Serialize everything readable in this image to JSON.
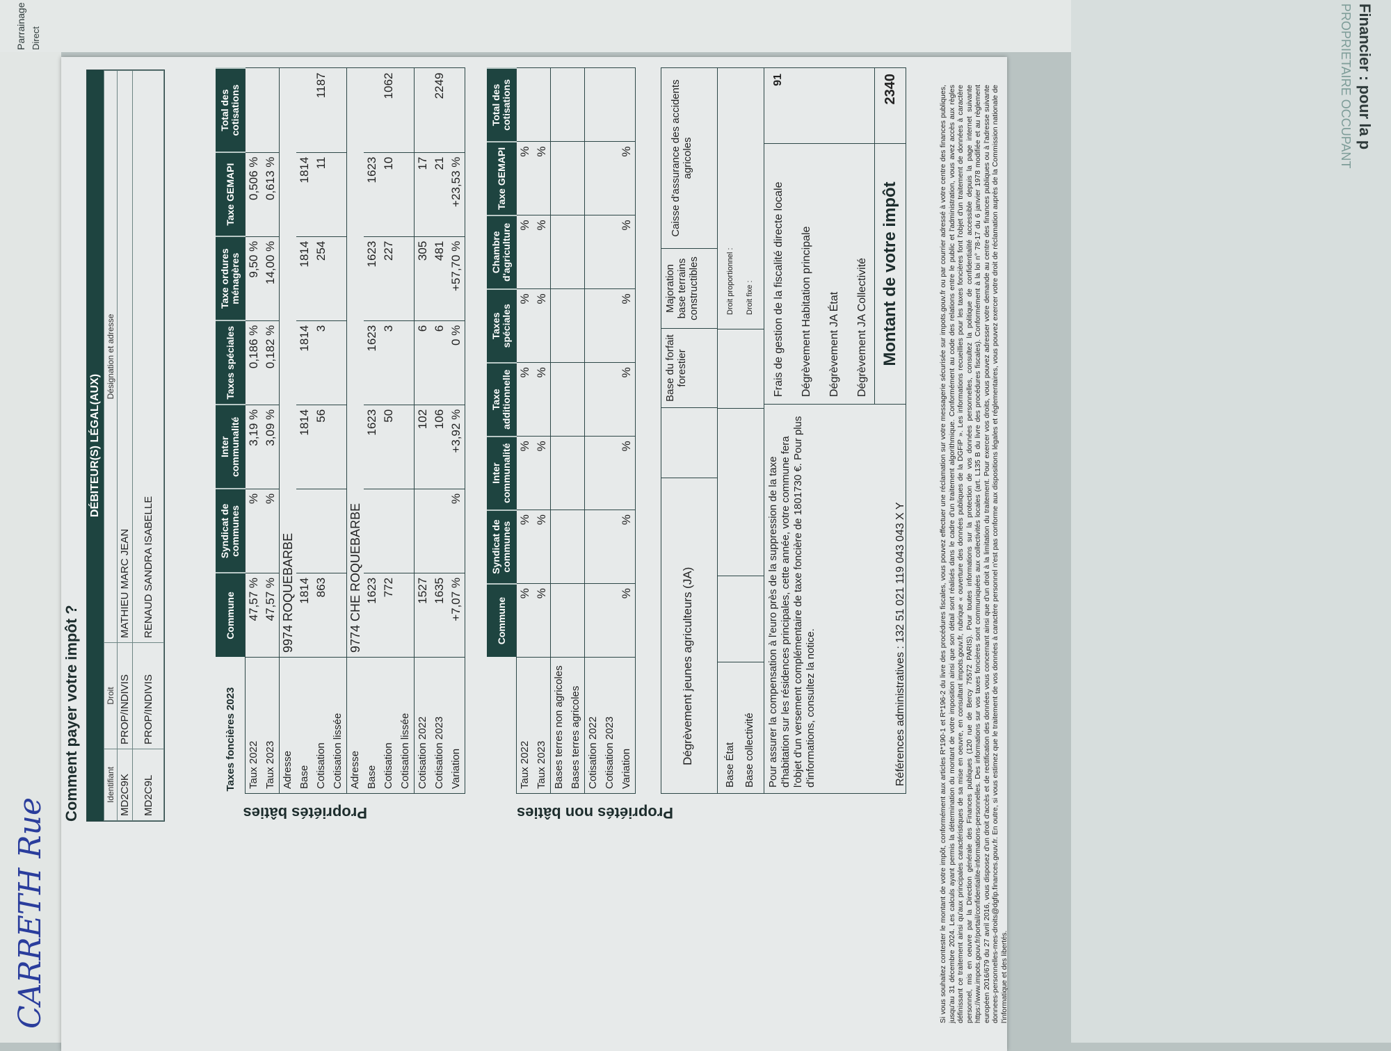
{
  "background": {
    "top_paper": {
      "checkbox1": "Parrainage",
      "checkbox2": "Direct"
    },
    "right_paper": {
      "title": "Financier : pour la p",
      "subtitle": "PROPRIETAIRE OCCUPANT"
    },
    "handwriting": "CARRETH Rue"
  },
  "doc": {
    "title": "Comment payer votre impôt ?",
    "debiteurs": {
      "bar": "DÉBITEUR(S) LÉGAL(AUX)",
      "headers": [
        "Identifiant",
        "Droit",
        "Désignation et adresse"
      ],
      "rows": [
        [
          "MD2C9K",
          "PROP/INDIVIS",
          "MATHIEU MARC JEAN"
        ],
        [
          "MD2C9L",
          "PROP/INDIVIS",
          "RENAUD SANDRA ISABELLE"
        ]
      ]
    },
    "batie": {
      "side_label": "Propriétés bâties",
      "caption": "Taxes foncières 2023",
      "headers": [
        "Commune",
        "Syndicat de communes",
        "Inter communalité",
        "Taxes spéciales",
        "Taxe ordures ménagères",
        "Taxe GEMAPI",
        "Total des cotisations"
      ],
      "rows": [
        {
          "label": "Taux 2022",
          "cells": [
            "47,57 %",
            "%",
            "3,19 %",
            "0,186 %",
            "9,50 %",
            "0,506 %",
            ""
          ],
          "sep": true
        },
        {
          "label": "Taux 2023",
          "cells": [
            "47,57 %",
            "%",
            "3,09 %",
            "0,182 %",
            "14,00 %",
            "0,613 %",
            ""
          ]
        },
        {
          "label": "Adresse",
          "span": "9974 ROQUEBARBE",
          "sep": true
        },
        {
          "label": "Base",
          "cells": [
            "1814",
            "",
            "1814",
            "1814",
            "1814",
            "1814",
            ""
          ]
        },
        {
          "label": "Cotisation",
          "cells": [
            "863",
            "",
            "56",
            "3",
            "254",
            "11",
            "1187"
          ]
        },
        {
          "label": "Cotisation lissée",
          "cells": [
            "",
            "",
            "",
            "",
            "",
            "",
            ""
          ]
        },
        {
          "label": "Adresse",
          "span": "9774 CHE ROQUEBARBE",
          "sep": true
        },
        {
          "label": "Base",
          "cells": [
            "1623",
            "",
            "1623",
            "1623",
            "1623",
            "1623",
            ""
          ]
        },
        {
          "label": "Cotisation",
          "cells": [
            "772",
            "",
            "50",
            "3",
            "227",
            "10",
            "1062"
          ]
        },
        {
          "label": "Cotisation lissée",
          "cells": [
            "",
            "",
            "",
            "",
            "",
            "",
            ""
          ]
        },
        {
          "label": "Cotisation 2022",
          "cells": [
            "1527",
            "",
            "102",
            "6",
            "305",
            "17",
            ""
          ],
          "sep": true
        },
        {
          "label": "Cotisation 2023",
          "cells": [
            "1635",
            "",
            "106",
            "6",
            "481",
            "21",
            "2249"
          ]
        },
        {
          "label": "Variation",
          "cells": [
            "+7,07 %",
            "%",
            "+3,92 %",
            "0 %",
            "+57,70 %",
            "+23,53 %",
            ""
          ]
        }
      ]
    },
    "non_batie": {
      "side_label": "Propriétés non bâties",
      "headers": [
        "Commune",
        "Syndicat de communes",
        "Inter communalité",
        "Taxe additionnelle",
        "Taxes spéciales",
        "Chambre d'agriculture",
        "Taxe GEMAPI",
        "Total des cotisations"
      ],
      "rows": [
        {
          "label": "Taux 2022",
          "cells": [
            "%",
            "%",
            "%",
            "%",
            "%",
            "%",
            "%",
            ""
          ],
          "sep": true
        },
        {
          "label": "Taux 2023",
          "cells": [
            "%",
            "%",
            "%",
            "%",
            "%",
            "%",
            "%",
            ""
          ]
        },
        {
          "label": "Bases terres non agricoles",
          "cells": [
            "",
            "",
            "",
            "",
            "",
            "",
            "",
            ""
          ],
          "sep": true
        },
        {
          "label": "Bases terres agricoles",
          "cells": [
            "",
            "",
            "",
            "",
            "",
            "",
            "",
            ""
          ]
        },
        {
          "label": "Cotisation 2022",
          "cells": [
            "",
            "",
            "",
            "",
            "",
            "",
            "",
            ""
          ],
          "sep": true
        },
        {
          "label": "Cotisation 2023",
          "cells": [
            "",
            "",
            "",
            "",
            "",
            "",
            "",
            ""
          ]
        },
        {
          "label": "Variation",
          "cells": [
            "%",
            "%",
            "%",
            "%",
            "%",
            "%",
            "%",
            ""
          ]
        }
      ]
    },
    "ja_row": {
      "ja": "Dégrèvement jeunes agriculteurs (JA)",
      "forfait": "Base du forfait forestier",
      "majoration": "Majoration base terrains constructibles",
      "caisse": "Caisse d'assurance des accidents agricoles"
    },
    "base_row": {
      "etat": "Base État",
      "collectivite": "Base collectivité",
      "droit_prop": "Droit proportionnel :",
      "droit_fixe": "Droit fixe :"
    },
    "compensation_text": "Pour assurer la compensation à l'euro près de la suppression de la taxe d'habitation sur les résidences principales, cette année, votre commune fera l'objet d'un versement complémentaire de taxe foncière de    1801730 €. Pour plus d'informations, consultez la notice.",
    "summary": [
      {
        "label": "Frais de gestion de la fiscalité directe locale",
        "value": "91"
      },
      {
        "label": "Dégrèvement Habitation principale",
        "value": ""
      },
      {
        "label": "Dégrèvement JA État",
        "value": ""
      },
      {
        "label": "Dégrèvement JA Collectivité",
        "value": ""
      }
    ],
    "total": {
      "label": "Montant de votre impôt",
      "value": "2340"
    },
    "references": "Références administratives : 132 51 021 119 043 043 X Y",
    "footer": "Si vous souhaitez contester le montant de votre impôt, conformément aux articles R*190-1 et R*196-2 du livre des procédures fiscales, vous pouvez effectuer une réclamation sur votre messagerie sécurisée sur impots.gouv.fr ou par courrier adressé à votre centre des finances publiques, jusqu'au 31 décembre 2024. Les calculs ayant permis la détermination du montant de votre imposition ainsi que son détail sont réalisés dans le cadre d'un traitement algorithmique. Conformément au code des relations entre le public et l'administration, vous avez accès aux règles définissant ce traitement ainsi qu'aux principales caractéristiques de sa mise en oeuvre, en consultant impots.gouv.fr, rubrique « ouverture des données publiques de la DGFiP ». Les informations recueillies pour les taxes foncières font l'objet d'un traitement de données à caractère personnel, mis en oeuvre par la Direction générale des Finances publiques (120 rue de Bercy 75572 PARIS). Pour toutes informations sur la protection de vos données personnelles, consultez la politique de confidentialité accessible depuis la page internet suivante https://www.impots.gouv.fr/portail/confidentialite-informations-personnelles. Des informations sur vos taxes foncières sont communiquées aux collectivités locales (art. L135 B du livre des procédures fiscales). Conformément à la loi n° 78-17 du 6 janvier 1978 modifiée et au règlement européen 2016/679 du 27 avril 2016, vous disposez d'un droit d'accès et de rectification des données vous concernant ainsi que d'un droit à la limitation du traitement. Pour exercer vos droits, vous pouvez adresser votre demande au centre des finances publiques ou à l'adresse suivante donnees-personnelles-mes-droits@dgfip.finances.gouv.fr. En outre, si vous estimez que le traitement de vos données à caractère personnel n'est pas conforme aux dispositions légales et réglementaires, vous pouvez exercer votre droit de réclamation auprès de la Commission nationale de l'informatique et des libertés."
  },
  "colors": {
    "header": "#1e4440",
    "paper": "#e7eaea",
    "line": "#2c4646"
  }
}
